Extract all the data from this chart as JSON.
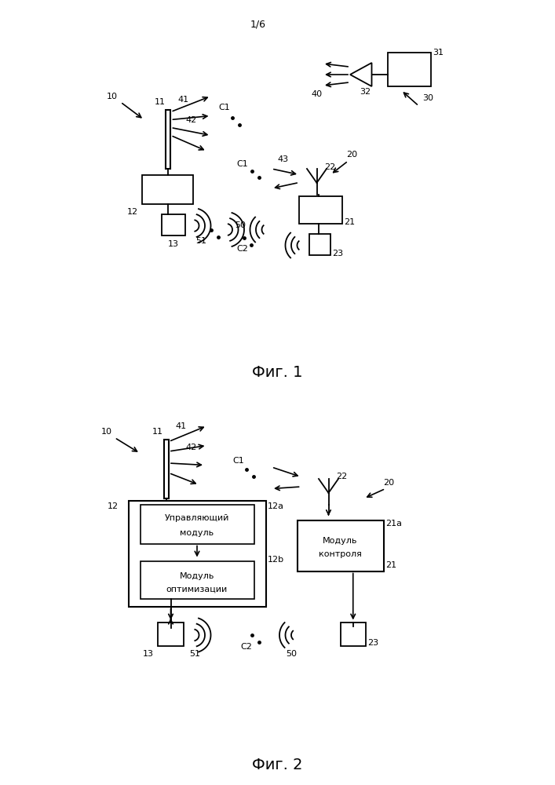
{
  "background_color": "#ffffff",
  "fig1_title": "1/6",
  "fig1_caption": "Фиг. 1",
  "fig2_caption": "Фиг. 2",
  "line_color": "#000000",
  "text_color": "#000000"
}
